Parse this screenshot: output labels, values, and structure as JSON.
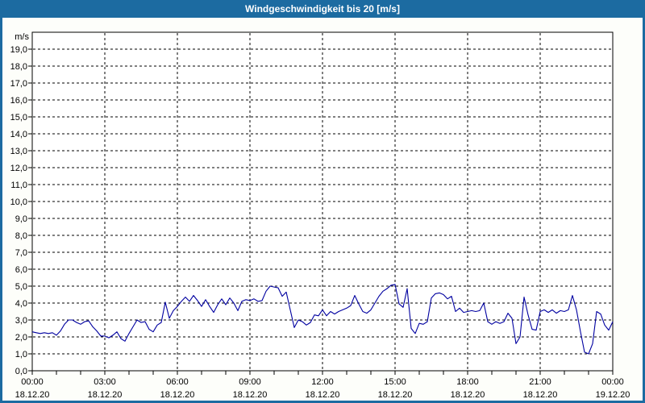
{
  "window": {
    "title": "Windgeschwindigkeit bis 20 [m/s]"
  },
  "colors": {
    "titlebar": "#1c6ba1",
    "frame": "#1c6ba1",
    "background": "#fdfefa",
    "plot_background": "#ffffff",
    "grid": "#000000",
    "text": "#000000",
    "line": "#0000a0"
  },
  "chart_data": {
    "type": "line",
    "title": "Windgeschwindigkeit bis 20 [m/s]",
    "unit_label": "m/s",
    "ylim": [
      0,
      20
    ],
    "y_tick_step": 1.0,
    "y_tick_labels": [
      "0,0",
      "1,0",
      "2,0",
      "3,0",
      "4,0",
      "5,0",
      "6,0",
      "7,0",
      "8,0",
      "9,0",
      "10,0",
      "11,0",
      "12,0",
      "13,0",
      "14,0",
      "15,0",
      "16,0",
      "17,0",
      "18,0",
      "19,0"
    ],
    "x_range_hours": [
      0,
      24
    ],
    "x_minor_tick_hours": 1,
    "x_major_ticks": [
      {
        "hour": 0,
        "time": "00:00",
        "date": "18.12.20"
      },
      {
        "hour": 3,
        "time": "03:00",
        "date": "18.12.20"
      },
      {
        "hour": 6,
        "time": "06:00",
        "date": "18.12.20"
      },
      {
        "hour": 9,
        "time": "09:00",
        "date": "18.12.20"
      },
      {
        "hour": 12,
        "time": "12:00",
        "date": "18.12.20"
      },
      {
        "hour": 15,
        "time": "15:00",
        "date": "18.12.20"
      },
      {
        "hour": 18,
        "time": "18:00",
        "date": "18.12.20"
      },
      {
        "hour": 21,
        "time": "21:00",
        "date": "18.12.20"
      },
      {
        "hour": 24,
        "time": "00:00",
        "date": "19.12.20"
      }
    ],
    "grid": "dashed",
    "legend": "none",
    "series": [
      {
        "name": "Windgeschwindigkeit",
        "color": "#0000a0",
        "start_hour": 0,
        "step_minutes": 10,
        "values": [
          2.3,
          2.25,
          2.2,
          2.25,
          2.2,
          2.25,
          2.1,
          2.35,
          2.75,
          3.0,
          3.0,
          2.85,
          2.75,
          2.9,
          2.95,
          2.6,
          2.35,
          2.05,
          2.05,
          1.95,
          2.1,
          2.3,
          1.9,
          1.75,
          2.2,
          2.6,
          3.0,
          2.85,
          2.9,
          2.45,
          2.3,
          2.7,
          2.85,
          4.05,
          3.1,
          3.55,
          3.8,
          4.1,
          4.35,
          4.1,
          4.45,
          4.15,
          3.8,
          4.2,
          3.8,
          3.45,
          3.9,
          4.25,
          3.9,
          4.3,
          4.0,
          3.55,
          4.1,
          4.2,
          4.15,
          4.25,
          4.1,
          4.15,
          4.7,
          5.0,
          4.95,
          4.9,
          4.4,
          4.65,
          3.6,
          2.55,
          3.0,
          2.9,
          2.7,
          2.85,
          3.3,
          3.25,
          3.6,
          3.25,
          3.5,
          3.35,
          3.5,
          3.6,
          3.7,
          3.85,
          4.45,
          3.95,
          3.5,
          3.4,
          3.6,
          4.0,
          4.4,
          4.7,
          4.85,
          5.05,
          5.1,
          3.95,
          3.75,
          4.85,
          2.5,
          2.2,
          2.8,
          2.75,
          2.9,
          4.3,
          4.55,
          4.6,
          4.5,
          4.25,
          4.4,
          3.5,
          3.7,
          3.45,
          3.5,
          3.55,
          3.5,
          3.55,
          4.0,
          2.9,
          2.75,
          2.9,
          2.8,
          2.9,
          3.4,
          3.1,
          1.6,
          2.0,
          4.35,
          3.3,
          2.45,
          2.4,
          3.5,
          3.6,
          3.45,
          3.6,
          3.4,
          3.55,
          3.5,
          3.6,
          4.45,
          3.6,
          2.3,
          1.1,
          1.0,
          1.6,
          3.5,
          3.35,
          2.7,
          2.4,
          2.9
        ]
      }
    ]
  }
}
